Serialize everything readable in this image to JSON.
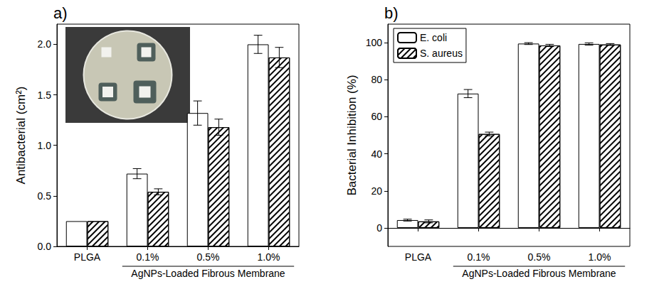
{
  "chart_data": [
    {
      "type": "bar",
      "panel_label": "a)",
      "y_label": "Antibacterial (cm²)",
      "categories": [
        "PLGA",
        "0.1%",
        "0.5%",
        "1.0%"
      ],
      "group_label": {
        "text": "AgNPs-Loaded Fibrous Membrane",
        "categories": [
          "0.1%",
          "0.5%",
          "1.0%"
        ]
      },
      "series": [
        {
          "color": "#ffffff",
          "values": [
            0.25,
            0.72,
            1.32,
            2.0
          ],
          "errors": [
            0,
            0.05,
            0.12,
            0.09
          ]
        },
        {
          "color": "#ffffff",
          "values": [
            0.25,
            0.54,
            1.18,
            1.87
          ],
          "errors": [
            0,
            0.03,
            0.08,
            0.1
          ]
        }
      ],
      "ylim": [
        0,
        2.2
      ],
      "yticks": [
        {
          "value": 0,
          "label": "0.0"
        },
        {
          "value": 0.5,
          "label": "0.5"
        },
        {
          "value": 1,
          "label": "1.0"
        },
        {
          "value": 1.5,
          "label": "1.5"
        },
        {
          "value": 2,
          "label": "2.0"
        }
      ],
      "grid": false
    },
    {
      "type": "bar",
      "panel_label": "b)",
      "y_label": "Bacterial Inhibition (%)",
      "categories": [
        "PLGA",
        "0.1%",
        "0.5%",
        "1.0%"
      ],
      "group_label": {
        "text": "AgNPs-Loaded Fibrous Membrane",
        "categories": [
          "0.1%",
          "0.5%",
          "1.0%"
        ]
      },
      "series": [
        {
          "name": "E. coli",
          "color": "#ffffff",
          "values": [
            4.2,
            72.5,
            99.5,
            99.3
          ],
          "errors": [
            0.5,
            2.2,
            0.5,
            0.6
          ]
        },
        {
          "name": "S. aureus",
          "color": "#ffffff",
          "values": [
            3.5,
            50.7,
            98.5,
            99.0
          ],
          "errors": [
            0.8,
            1.0,
            0.6,
            0.5
          ]
        }
      ],
      "ylim": [
        -10,
        110
      ],
      "yticks": [
        0,
        20,
        40,
        60,
        80,
        100
      ],
      "grid": false,
      "legend": "upper left"
    }
  ]
}
